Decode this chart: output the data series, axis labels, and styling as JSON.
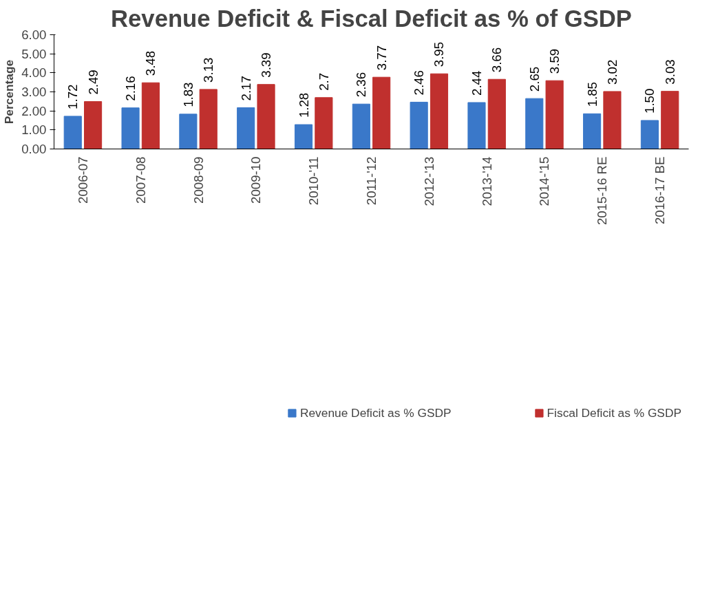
{
  "chart_data": {
    "type": "bar",
    "title": "Revenue Deficit & Fiscal Deficit as % of GSDP",
    "ylabel": "Percentage",
    "categories": [
      "2006-07",
      "2007-08",
      "2008-09",
      "2009-10",
      "2010-'11",
      "2011-'12",
      "2012-'13",
      "2013-'14",
      "2014-'15",
      "2015-16 RE",
      "2016-17 BE"
    ],
    "series": [
      {
        "name": "Revenue Deficit as % GSDP",
        "color": "#3a78c9",
        "values": [
          1.72,
          2.16,
          1.83,
          2.17,
          1.28,
          2.36,
          2.46,
          2.44,
          2.65,
          1.85,
          1.5
        ],
        "value_labels": [
          "1.72",
          "2.16",
          "1.83",
          "2.17",
          "1.28",
          "2.36",
          "2.46",
          "2.44",
          "2.65",
          "1.85",
          "1.50"
        ]
      },
      {
        "name": "Fiscal Deficit as % GSDP",
        "color": "#c0302e",
        "values": [
          2.49,
          3.48,
          3.13,
          3.39,
          2.7,
          3.77,
          3.95,
          3.66,
          3.59,
          3.02,
          3.03
        ],
        "value_labels": [
          "2.49",
          "3.48",
          "3.13",
          "3.39",
          "2.7",
          "3.77",
          "3.95",
          "3.66",
          "3.59",
          "3.02",
          "3.03"
        ]
      }
    ],
    "ylim": [
      0,
      6
    ],
    "yticks": [
      {
        "value": 0,
        "label": "0.00"
      },
      {
        "value": 1,
        "label": "1.00"
      },
      {
        "value": 2,
        "label": "2.00"
      },
      {
        "value": 3,
        "label": "3.00"
      },
      {
        "value": 4,
        "label": "4.00"
      },
      {
        "value": 5,
        "label": "5.00"
      },
      {
        "value": 6,
        "label": "6.00"
      }
    ],
    "grid": false,
    "legend": "bottom"
  }
}
